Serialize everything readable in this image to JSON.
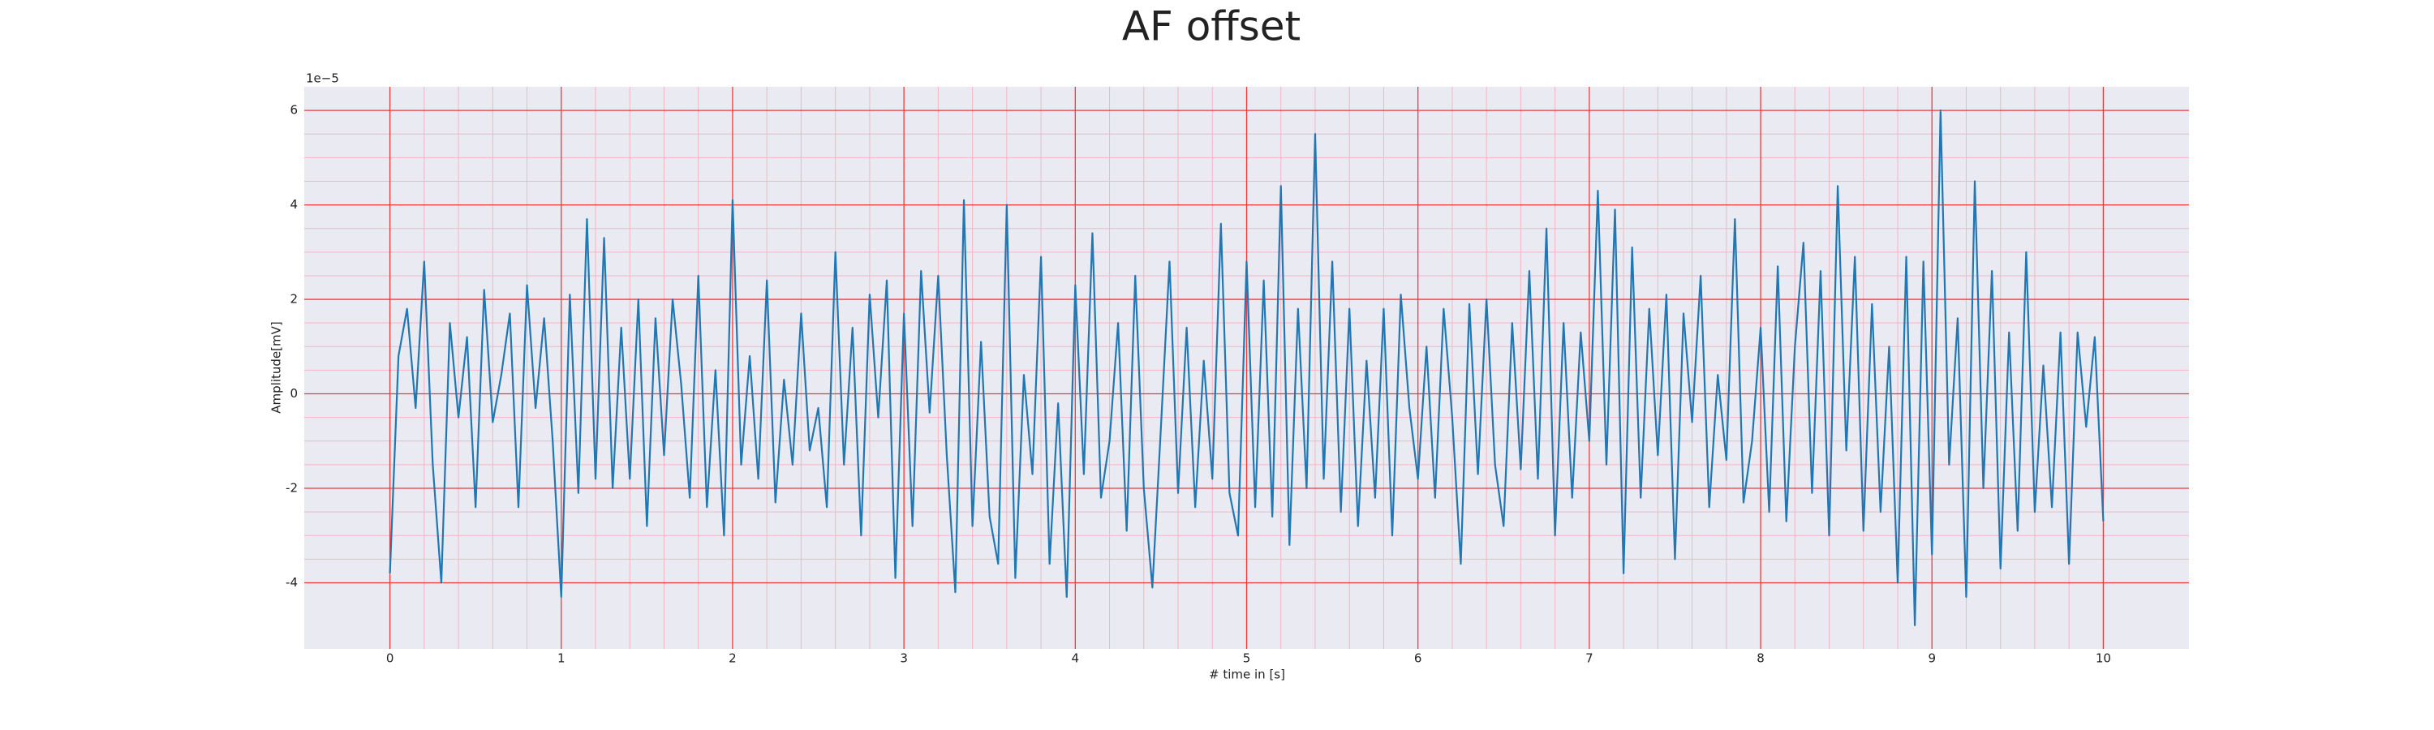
{
  "chart_data": {
    "type": "line",
    "title": "AF offset",
    "xlabel": "# time in [s]",
    "ylabel": "Amplitude[mV]",
    "y_offset_text": "1e−5",
    "color": "#1f77b4",
    "grid": true,
    "minor_grid": true,
    "xlim": [
      -0.5,
      10.5
    ],
    "xticks": [
      0,
      1,
      2,
      3,
      4,
      5,
      6,
      7,
      8,
      9,
      10
    ],
    "ylim": [
      -5.4,
      6.5
    ],
    "yticks": [
      -4,
      -2,
      0,
      2,
      4,
      6
    ],
    "x": [
      0,
      0.05,
      0.1,
      0.15,
      0.2,
      0.25,
      0.3,
      0.35,
      0.4,
      0.45,
      0.5,
      0.55,
      0.6,
      0.65,
      0.7,
      0.75,
      0.8,
      0.85,
      0.9,
      0.95,
      1,
      1.05,
      1.1,
      1.15,
      1.2,
      1.25,
      1.3,
      1.35,
      1.4,
      1.45,
      1.5,
      1.55,
      1.6,
      1.65,
      1.7,
      1.75,
      1.8,
      1.85,
      1.9,
      1.95,
      2,
      2.05,
      2.1,
      2.15,
      2.2,
      2.25,
      2.3,
      2.35,
      2.4,
      2.45,
      2.5,
      2.55,
      2.6,
      2.65,
      2.7,
      2.75,
      2.8,
      2.85,
      2.9,
      2.95,
      3,
      3.05,
      3.1,
      3.15,
      3.2,
      3.25,
      3.3,
      3.35,
      3.4,
      3.45,
      3.5,
      3.55,
      3.6,
      3.65,
      3.7,
      3.75,
      3.8,
      3.85,
      3.9,
      3.95,
      4,
      4.05,
      4.1,
      4.15,
      4.2,
      4.25,
      4.3,
      4.35,
      4.4,
      4.45,
      4.5,
      4.55,
      4.6,
      4.65,
      4.7,
      4.75,
      4.8,
      4.85,
      4.9,
      4.95,
      5,
      5.05,
      5.1,
      5.15,
      5.2,
      5.25,
      5.3,
      5.35,
      5.4,
      5.45,
      5.5,
      5.55,
      5.6,
      5.65,
      5.7,
      5.75,
      5.8,
      5.85,
      5.9,
      5.95,
      6,
      6.05,
      6.1,
      6.15,
      6.2,
      6.25,
      6.3,
      6.35,
      6.4,
      6.45,
      6.5,
      6.55,
      6.6,
      6.65,
      6.7,
      6.75,
      6.8,
      6.85,
      6.9,
      6.95,
      7,
      7.05,
      7.1,
      7.15,
      7.2,
      7.25,
      7.3,
      7.35,
      7.4,
      7.45,
      7.5,
      7.55,
      7.6,
      7.65,
      7.7,
      7.75,
      7.8,
      7.85,
      7.9,
      7.95,
      8,
      8.05,
      8.1,
      8.15,
      8.2,
      8.25,
      8.3,
      8.35,
      8.4,
      8.45,
      8.5,
      8.55,
      8.6,
      8.65,
      8.7,
      8.75,
      8.8,
      8.85,
      8.9,
      8.95,
      9,
      9.05,
      9.1,
      9.15,
      9.2,
      9.25,
      9.3,
      9.35,
      9.4,
      9.45,
      9.5,
      9.55,
      9.6,
      9.65,
      9.7,
      9.75,
      9.8,
      9.85,
      9.9,
      9.95,
      10
    ],
    "values": [
      -3.8,
      0.8,
      1.8,
      -0.3,
      2.8,
      -1.5,
      -4.0,
      1.5,
      -0.5,
      1.2,
      -2.4,
      2.2,
      -0.6,
      0.4,
      1.7,
      -2.4,
      2.3,
      -0.3,
      1.6,
      -1.0,
      -4.3,
      2.1,
      -2.1,
      3.7,
      -1.8,
      3.3,
      -2.0,
      1.4,
      -1.8,
      2.0,
      -2.8,
      1.6,
      -1.3,
      2.0,
      0.2,
      -2.2,
      2.5,
      -2.4,
      0.5,
      -3.0,
      4.1,
      -1.5,
      0.8,
      -1.8,
      2.4,
      -2.3,
      0.3,
      -1.5,
      1.7,
      -1.2,
      -0.3,
      -2.4,
      3.0,
      -1.5,
      1.4,
      -3.0,
      2.1,
      -0.5,
      2.4,
      -3.9,
      1.7,
      -2.8,
      2.6,
      -0.4,
      2.5,
      -1.3,
      -4.2,
      4.1,
      -2.8,
      1.1,
      -2.6,
      -3.6,
      4.0,
      -3.9,
      0.4,
      -1.7,
      2.9,
      -3.6,
      -0.2,
      -4.3,
      2.3,
      -1.7,
      3.4,
      -2.2,
      -1.0,
      1.5,
      -2.9,
      2.5,
      -2.0,
      -4.1,
      -0.7,
      2.8,
      -2.1,
      1.4,
      -2.4,
      0.7,
      -1.8,
      3.6,
      -2.1,
      -3.0,
      2.8,
      -2.4,
      2.4,
      -2.6,
      4.4,
      -3.2,
      1.8,
      -2.0,
      5.5,
      -1.8,
      2.8,
      -2.5,
      1.8,
      -2.8,
      0.7,
      -2.2,
      1.8,
      -3.0,
      2.1,
      -0.3,
      -1.8,
      1.0,
      -2.2,
      1.8,
      -0.5,
      -3.6,
      1.9,
      -1.7,
      2.0,
      -1.5,
      -2.8,
      1.5,
      -1.6,
      2.6,
      -1.8,
      3.5,
      -3.0,
      1.5,
      -2.2,
      1.3,
      -1.0,
      4.3,
      -1.5,
      3.9,
      -3.8,
      3.1,
      -2.2,
      1.8,
      -1.3,
      2.1,
      -3.5,
      1.7,
      -0.6,
      2.5,
      -2.4,
      0.4,
      -1.4,
      3.7,
      -2.3,
      -1.0,
      1.4,
      -2.5,
      2.7,
      -2.7,
      1.0,
      3.2,
      -2.1,
      2.6,
      -3.0,
      4.4,
      -1.2,
      2.9,
      -2.9,
      1.9,
      -2.5,
      1.0,
      -4.0,
      2.9,
      -4.9,
      2.8,
      -3.4,
      6.0,
      -1.5,
      1.6,
      -4.3,
      4.5,
      -2.0,
      2.6,
      -3.7,
      1.3,
      -2.9,
      3.0,
      -2.5,
      0.6,
      -2.4,
      1.3,
      -3.6,
      1.3,
      -0.7,
      1.2,
      -2.7
    ]
  }
}
